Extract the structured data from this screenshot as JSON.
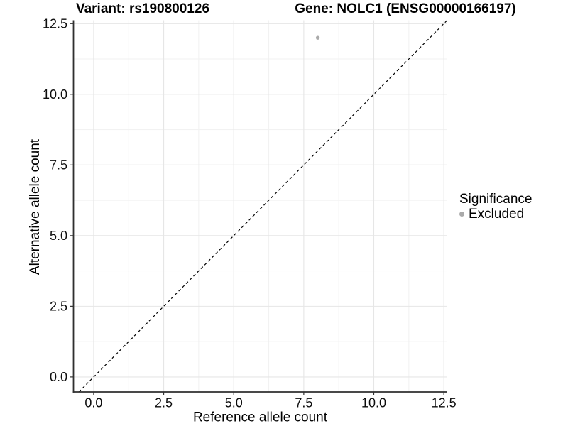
{
  "chart_data": {
    "type": "scatter",
    "title_left": "Variant: rs190800126",
    "title_right": "Gene: NOLC1 (ENSG00000166197)",
    "xlabel": "Reference allele count",
    "ylabel": "Alternative allele count",
    "x_ticks": [
      0,
      2.5,
      5,
      7.5,
      10,
      12.5
    ],
    "y_ticks": [
      0,
      2.5,
      5,
      7.5,
      10,
      12.5
    ],
    "x_minor_ticks": [
      1.25,
      3.75,
      6.25,
      8.75,
      11.25
    ],
    "y_minor_ticks": [
      1.25,
      3.75,
      6.25,
      8.75,
      11.25
    ],
    "tick_label_decimals": 1,
    "xlim": [
      -0.72,
      12.61
    ],
    "ylim": [
      -0.53,
      12.62
    ],
    "grid": "major+minor",
    "identity_line": {
      "slope": 1,
      "intercept": 0,
      "style": "dashed",
      "color": "#000000"
    },
    "series": [
      {
        "name": "Excluded",
        "color": "#aaaaaa",
        "points": [
          {
            "x": 8,
            "y": 12
          }
        ]
      }
    ],
    "legend": {
      "title": "Significance",
      "position": "right",
      "entries": [
        {
          "label": "Excluded",
          "color": "#aaaaaa"
        }
      ]
    },
    "colors": {
      "grid_major": "#e6e6e6",
      "grid_minor": "#f1f1f1",
      "axis_line": "#2f2f2f",
      "tick_mark": "#333333",
      "tick_text": "#0d0d0d"
    }
  }
}
